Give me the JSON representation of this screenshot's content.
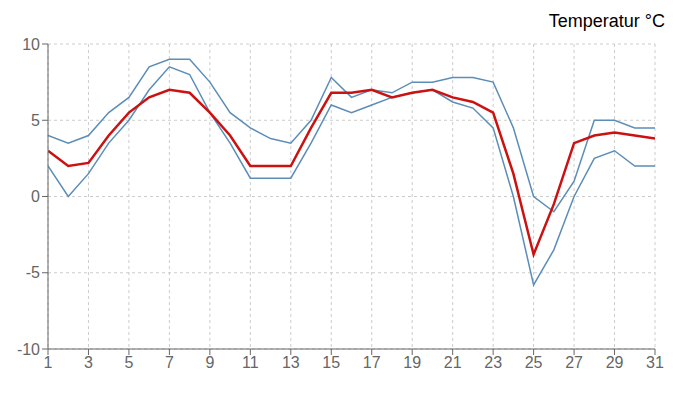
{
  "chart_data": {
    "type": "line",
    "title": "Temperatur °C",
    "x": [
      1,
      2,
      3,
      4,
      5,
      6,
      7,
      8,
      9,
      10,
      11,
      12,
      13,
      14,
      15,
      16,
      17,
      18,
      19,
      20,
      21,
      22,
      23,
      24,
      25,
      26,
      27,
      28,
      29,
      30,
      31
    ],
    "series": [
      {
        "color": "#5b8db8",
        "values": [
          4.0,
          3.5,
          4.0,
          5.5,
          6.5,
          8.5,
          9.0,
          9.0,
          7.5,
          5.5,
          4.5,
          3.8,
          3.5,
          5.0,
          7.8,
          6.5,
          7.0,
          6.8,
          7.5,
          7.5,
          7.8,
          7.8,
          7.5,
          4.5,
          0.0,
          -1.0,
          1.0,
          5.0,
          5.0,
          4.5,
          4.5
        ]
      },
      {
        "color": "#5b8db8",
        "values": [
          2.0,
          0.0,
          1.5,
          3.5,
          5.0,
          7.0,
          8.5,
          8.0,
          5.5,
          3.5,
          1.2,
          1.2,
          1.2,
          3.5,
          6.0,
          5.5,
          6.0,
          6.5,
          6.8,
          7.0,
          6.2,
          5.8,
          4.5,
          0.0,
          -5.8,
          -3.5,
          0.0,
          2.5,
          3.0,
          2.0,
          2.0
        ]
      },
      {
        "color": "#cc1111",
        "values": [
          3.0,
          2.0,
          2.2,
          4.0,
          5.5,
          6.5,
          7.0,
          6.8,
          5.5,
          4.0,
          2.0,
          2.0,
          2.0,
          4.5,
          6.8,
          6.8,
          7.0,
          6.5,
          6.8,
          7.0,
          6.5,
          6.2,
          5.5,
          1.5,
          -3.8,
          -0.5,
          3.5,
          4.0,
          4.2,
          4.0,
          3.8
        ]
      }
    ],
    "xlim": [
      1,
      31
    ],
    "ylim": [
      -10,
      10
    ],
    "xticks": [
      1,
      3,
      5,
      7,
      9,
      11,
      13,
      15,
      17,
      19,
      21,
      23,
      25,
      27,
      29,
      31
    ],
    "yticks": [
      -10,
      -5,
      0,
      5,
      10
    ],
    "grid": true
  }
}
